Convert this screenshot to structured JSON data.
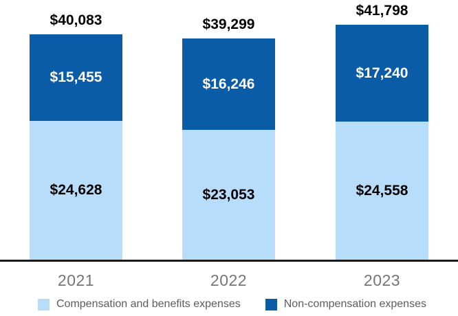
{
  "colors": {
    "comp_light_blue": "#b7ddfa",
    "noncomp_dark_blue": "#0b5ca6",
    "total_label_black": "#000000",
    "label_on_dark": "#ffffff",
    "label_on_light": "#000000",
    "axis_line": "#1a1a1a",
    "year_label_gray": "#757575",
    "legend_text_gray": "#5c5c5c",
    "background": "#ffffff"
  },
  "chart_data": {
    "type": "bar",
    "stacked": true,
    "title": "",
    "xlabel": "",
    "ylabel": "",
    "grid": false,
    "legend_position": "bottom",
    "categories": [
      "2021",
      "2022",
      "2023"
    ],
    "series": [
      {
        "name": "Compensation and benefits expenses",
        "color_key": "comp_light_blue",
        "label_color_key": "label_on_light",
        "values": [
          24628,
          23053,
          24558
        ],
        "labels": [
          "$24,628",
          "$23,053",
          "$24,558"
        ]
      },
      {
        "name": "Non-compensation expenses",
        "color_key": "noncomp_dark_blue",
        "label_color_key": "label_on_dark",
        "values": [
          15455,
          16246,
          17240
        ],
        "labels": [
          "$15,455",
          "$16,246",
          "$17,240"
        ]
      }
    ],
    "totals": [
      40083,
      39299,
      41798
    ],
    "total_labels": [
      "$40,083",
      "$39,299",
      "$41,798"
    ],
    "ylim": [
      0,
      41798
    ]
  },
  "legend": {
    "items": [
      {
        "label": "Compensation and benefits expenses",
        "color_key": "comp_light_blue"
      },
      {
        "label": "Non-compensation expenses",
        "color_key": "noncomp_dark_blue"
      }
    ]
  }
}
